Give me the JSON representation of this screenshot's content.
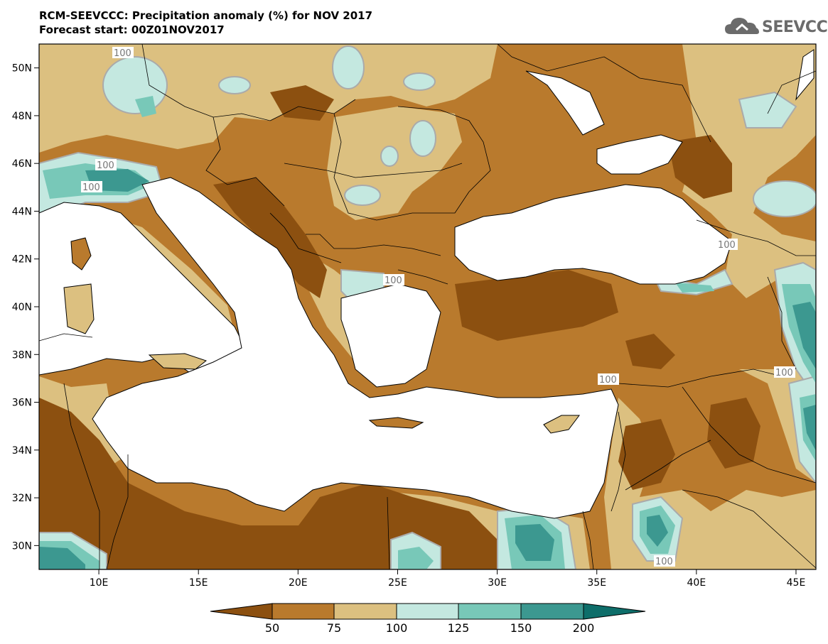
{
  "header": {
    "title": "RCM-SEEVCCC: Precipitation anomaly (%) for NOV 2017",
    "subtitle": "Forecast start: 00Z01NOV2017"
  },
  "logo": {
    "text": "SEEVCCC",
    "icon": "cloud-icon"
  },
  "map": {
    "lon_range": [
      7,
      46
    ],
    "lat_range": [
      29,
      51
    ],
    "x_ticks": [
      "10E",
      "15E",
      "20E",
      "25E",
      "30E",
      "35E",
      "40E",
      "45E"
    ],
    "y_ticks": [
      "50N",
      "48N",
      "46N",
      "44N",
      "42N",
      "40N",
      "38N",
      "36N",
      "34N",
      "32N",
      "30N"
    ],
    "contour_labels": [
      "100",
      "100",
      "100",
      "100",
      "100",
      "100",
      "100",
      "100"
    ]
  },
  "colorbar": {
    "labels": [
      "50",
      "75",
      "100",
      "125",
      "150",
      "200"
    ],
    "colors": [
      "#8c5010",
      "#b97a2d",
      "#dcc080",
      "#c4e8e0",
      "#78c8b8",
      "#3c9890",
      "#0e6e6a"
    ]
  },
  "palette": {
    "sea": "#ffffff",
    "very_dry": "#8c5010",
    "dry": "#b97a2d",
    "slightly_dry": "#dcc080",
    "slightly_wet": "#c4e8e0",
    "wet": "#78c8b8",
    "very_wet": "#3c9890",
    "extreme_wet": "#0e6e6a"
  }
}
